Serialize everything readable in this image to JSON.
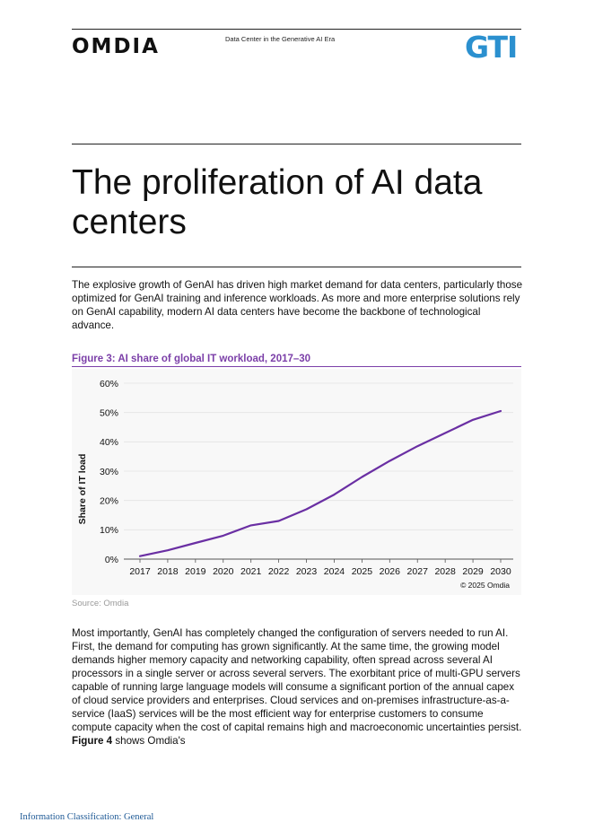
{
  "header": {
    "logo_left": "OMDIA",
    "subtitle": "Data Center in the Generative AI Era",
    "logo_right": "GTI"
  },
  "title": "The proliferation of AI data centers",
  "intro": "The explosive growth of GenAI has driven high market demand for data centers, particularly those optimized for GenAI training and inference workloads. As more and more enterprise solutions rely on GenAI capability, modern AI data centers have become the backbone of technological advance.",
  "figure": {
    "caption": "Figure 3: AI share of global IT workload, 2017–30",
    "source": "Source: Omdia",
    "copyright": "© 2025 Omdia"
  },
  "chart_data": {
    "type": "line",
    "title": "Figure 3: AI share of global IT workload, 2017–30",
    "xlabel": "",
    "ylabel": "Share of IT load",
    "categories": [
      "2017",
      "2018",
      "2019",
      "2020",
      "2021",
      "2022",
      "2023",
      "2024",
      "2025",
      "2026",
      "2027",
      "2028",
      "2029",
      "2030"
    ],
    "series": [
      {
        "name": "AI share of global IT workload",
        "values": [
          1,
          3,
          5.5,
          8,
          11.5,
          13,
          17,
          22,
          28,
          33.5,
          38.5,
          43,
          47.5,
          50.5
        ]
      }
    ],
    "yticks": [
      "0%",
      "10%",
      "20%",
      "30%",
      "40%",
      "50%",
      "60%"
    ],
    "ylim": [
      0,
      60
    ],
    "grid": true,
    "color": "#6a2fa3"
  },
  "body": {
    "paragraph_main": "Most importantly, GenAI has completely changed the configuration of servers needed to run AI. First, the demand for computing has grown significantly. At the same time, the growing model demands higher memory capacity and networking capability, often spread across several AI processors in a single server or across several servers. The exorbitant price of multi-GPU servers capable of running large language models will consume a significant portion of the annual capex of cloud service providers and enterprises. Cloud services and on-premises infrastructure-as-a-service (IaaS) services will be the most efficient way for enterprise customers to consume compute capacity when the cost of capital remains high and macroeconomic uncertainties persist.",
    "paragraph_ref": "Figure 4",
    "paragraph_tail": "shows Omdia's"
  },
  "footer": "Information Classification: General"
}
